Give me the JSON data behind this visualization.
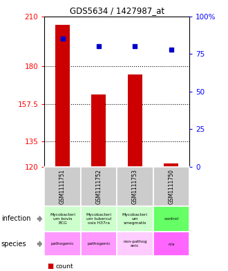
{
  "title": "GDS5634 / 1427987_at",
  "samples": [
    "GSM1111751",
    "GSM1111752",
    "GSM1111753",
    "GSM1111750"
  ],
  "bar_values": [
    205,
    163,
    175,
    122
  ],
  "bar_bottom": 120,
  "percentile_values": [
    85,
    80,
    80,
    78
  ],
  "ylim_left": [
    120,
    210
  ],
  "ylim_right": [
    0,
    100
  ],
  "yticks_left": [
    120,
    135,
    157.5,
    180,
    210
  ],
  "yticks_right": [
    0,
    25,
    50,
    75,
    100
  ],
  "ytick_labels_left": [
    "120",
    "135",
    "157.5",
    "180",
    "210"
  ],
  "ytick_labels_right": [
    "0",
    "25",
    "50",
    "75",
    "100%"
  ],
  "hlines": [
    180,
    157.5,
    135
  ],
  "bar_color": "#cc0000",
  "dot_color": "#0000cc",
  "infection_labels": [
    "Mycobacteri\num bovis\nBCG",
    "Mycobacteri\num tubercul\nosis H37ra",
    "Mycobacteri\num\nsmegmatis",
    "control"
  ],
  "infection_colors": [
    "#ccffcc",
    "#ccffcc",
    "#ccffcc",
    "#66ff66"
  ],
  "species_labels": [
    "pathogenic",
    "pathogenic",
    "non-pathog\nenic",
    "n/a"
  ],
  "species_colors": [
    "#ff99ff",
    "#ff99ff",
    "#ffccff",
    "#ff66ff"
  ],
  "legend_count_color": "#cc0000",
  "legend_pct_color": "#0000cc",
  "sample_box_color": "#cccccc",
  "arrow_color": "#888888"
}
